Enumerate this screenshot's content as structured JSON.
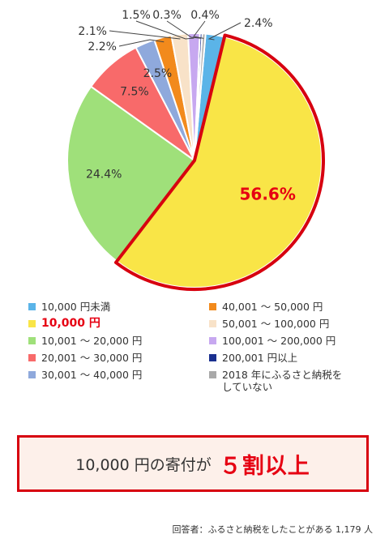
{
  "chart_data": {
    "type": "pie",
    "slices": [
      {
        "label": "10,000 円未満",
        "value": 2.4,
        "display": "2.4%",
        "color": "#5bb4e8"
      },
      {
        "label": "10,000 円",
        "value": 56.6,
        "display": "56.6%",
        "color": "#f9e547",
        "highlight": true
      },
      {
        "label": "10,001 ～ 20,000 円",
        "value": 24.4,
        "display": "24.4%",
        "color": "#9fe07a"
      },
      {
        "label": "20,001 ～ 30,000 円",
        "value": 7.5,
        "display": "7.5%",
        "color": "#f86a6a"
      },
      {
        "label": "30,001 ～ 40,000 円",
        "value": 2.5,
        "display": "2.5%",
        "color": "#8fa9dc"
      },
      {
        "label": "40,001 ～ 50,000 円",
        "value": 2.2,
        "display": "2.2%",
        "color": "#f28a1c"
      },
      {
        "label": "50,001 ～ 100,000 円",
        "value": 2.1,
        "display": "2.1%",
        "color": "#f8e2c8"
      },
      {
        "label": "100,001 ～ 200,000 円",
        "value": 1.5,
        "display": "1.5%",
        "color": "#c7a8f0"
      },
      {
        "label": "200,001 円以上",
        "value": 0.3,
        "display": "0.3%",
        "color": "#1a2f8f"
      },
      {
        "label": "2018 年にふるさと納税を\nしていない",
        "value": 0.4,
        "display": "0.4%",
        "color": "#a9a9a9"
      }
    ],
    "highlight_color": "#d7000f"
  },
  "callout": {
    "prefix": "10,000 円の寄付が",
    "emphasis": "５割以上"
  },
  "footnote": "回答者：ふるさと納税をしたことがある 1,179 人"
}
